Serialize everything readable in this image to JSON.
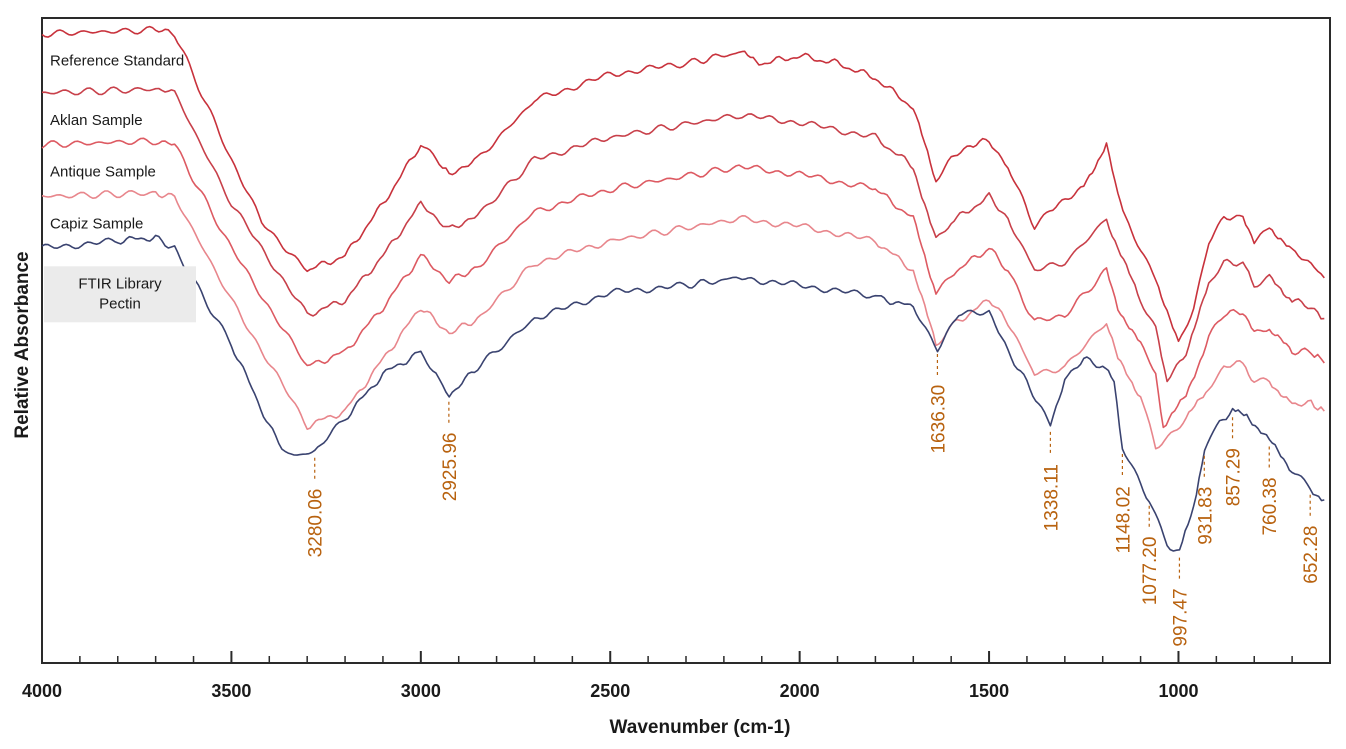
{
  "chart_data": {
    "type": "line",
    "xlabel": "Wavenumber (cm-1)",
    "ylabel": "Relative Absorbance",
    "xlim": [
      4000,
      600
    ],
    "x_ticks": [
      "4000",
      "3500",
      "3000",
      "2500",
      "2000",
      "1500",
      "1000"
    ],
    "y_scale": "relative (series stacked vertically, unitless)",
    "grid": false,
    "legend": "labels placed at left beside each trace",
    "series": [
      {
        "name": "Reference Standard",
        "color": "#c8323c",
        "values": [
          [
            4000,
            0.96
          ],
          [
            3700,
            0.97
          ],
          [
            3650,
            0.96
          ],
          [
            3500,
            0.62
          ],
          [
            3420,
            0.45
          ],
          [
            3300,
            0.32
          ],
          [
            3200,
            0.36
          ],
          [
            3100,
            0.5
          ],
          [
            3000,
            0.66
          ],
          [
            2960,
            0.62
          ],
          [
            2925,
            0.58
          ],
          [
            2850,
            0.62
          ],
          [
            2700,
            0.78
          ],
          [
            2500,
            0.85
          ],
          [
            2300,
            0.88
          ],
          [
            2160,
            0.91
          ],
          [
            2100,
            0.88
          ],
          [
            2000,
            0.9
          ],
          [
            1900,
            0.88
          ],
          [
            1800,
            0.84
          ],
          [
            1700,
            0.76
          ],
          [
            1640,
            0.56
          ],
          [
            1600,
            0.62
          ],
          [
            1550,
            0.66
          ],
          [
            1500,
            0.67
          ],
          [
            1450,
            0.6
          ],
          [
            1380,
            0.44
          ],
          [
            1340,
            0.48
          ],
          [
            1250,
            0.55
          ],
          [
            1190,
            0.66
          ],
          [
            1160,
            0.52
          ],
          [
            1140,
            0.46
          ],
          [
            1100,
            0.38
          ],
          [
            1060,
            0.3
          ],
          [
            1000,
            0.12
          ],
          [
            960,
            0.22
          ],
          [
            920,
            0.4
          ],
          [
            880,
            0.46
          ],
          [
            830,
            0.47
          ],
          [
            800,
            0.4
          ],
          [
            760,
            0.44
          ],
          [
            700,
            0.37
          ],
          [
            650,
            0.34
          ],
          [
            615,
            0.3
          ]
        ]
      },
      {
        "name": "Aklan Sample",
        "color": "#c8404a",
        "values": [
          [
            4000,
            0.8
          ],
          [
            3700,
            0.81
          ],
          [
            3650,
            0.8
          ],
          [
            3500,
            0.5
          ],
          [
            3300,
            0.2
          ],
          [
            3200,
            0.24
          ],
          [
            3100,
            0.36
          ],
          [
            3000,
            0.5
          ],
          [
            2925,
            0.43
          ],
          [
            2850,
            0.47
          ],
          [
            2700,
            0.62
          ],
          [
            2500,
            0.68
          ],
          [
            2160,
            0.74
          ],
          [
            2000,
            0.72
          ],
          [
            1800,
            0.68
          ],
          [
            1700,
            0.6
          ],
          [
            1640,
            0.4
          ],
          [
            1600,
            0.45
          ],
          [
            1500,
            0.52
          ],
          [
            1450,
            0.46
          ],
          [
            1380,
            0.32
          ],
          [
            1300,
            0.34
          ],
          [
            1190,
            0.46
          ],
          [
            1160,
            0.38
          ],
          [
            1100,
            0.24
          ],
          [
            1060,
            0.16
          ],
          [
            1030,
            0.02
          ],
          [
            980,
            0.1
          ],
          [
            920,
            0.28
          ],
          [
            880,
            0.34
          ],
          [
            830,
            0.34
          ],
          [
            800,
            0.28
          ],
          [
            760,
            0.3
          ],
          [
            700,
            0.24
          ],
          [
            650,
            0.22
          ],
          [
            615,
            0.19
          ]
        ]
      },
      {
        "name": "Antique Sample",
        "color": "#dd5a62",
        "values": [
          [
            4000,
            0.66
          ],
          [
            3700,
            0.67
          ],
          [
            3650,
            0.66
          ],
          [
            3500,
            0.38
          ],
          [
            3300,
            0.06
          ],
          [
            3200,
            0.1
          ],
          [
            3100,
            0.22
          ],
          [
            3000,
            0.36
          ],
          [
            2925,
            0.29
          ],
          [
            2850,
            0.33
          ],
          [
            2700,
            0.48
          ],
          [
            2500,
            0.54
          ],
          [
            2160,
            0.6
          ],
          [
            2000,
            0.58
          ],
          [
            1800,
            0.54
          ],
          [
            1700,
            0.46
          ],
          [
            1640,
            0.26
          ],
          [
            1600,
            0.31
          ],
          [
            1500,
            0.38
          ],
          [
            1450,
            0.32
          ],
          [
            1380,
            0.18
          ],
          [
            1300,
            0.2
          ],
          [
            1190,
            0.32
          ],
          [
            1160,
            0.22
          ],
          [
            1100,
            0.12
          ],
          [
            1060,
            0.04
          ],
          [
            1040,
            -0.1
          ],
          [
            980,
            -0.02
          ],
          [
            920,
            0.14
          ],
          [
            880,
            0.2
          ],
          [
            830,
            0.21
          ],
          [
            800,
            0.15
          ],
          [
            760,
            0.16
          ],
          [
            700,
            0.1
          ],
          [
            650,
            0.1
          ],
          [
            615,
            0.07
          ]
        ]
      },
      {
        "name": "Capiz Sample",
        "color": "#e8868c",
        "values": [
          [
            4000,
            0.52
          ],
          [
            3700,
            0.53
          ],
          [
            3650,
            0.52
          ],
          [
            3500,
            0.24
          ],
          [
            3300,
            -0.1
          ],
          [
            3200,
            -0.06
          ],
          [
            3100,
            0.08
          ],
          [
            3000,
            0.22
          ],
          [
            2925,
            0.15
          ],
          [
            2850,
            0.19
          ],
          [
            2700,
            0.34
          ],
          [
            2500,
            0.4
          ],
          [
            2160,
            0.46
          ],
          [
            2000,
            0.44
          ],
          [
            1800,
            0.4
          ],
          [
            1700,
            0.32
          ],
          [
            1640,
            0.12
          ],
          [
            1600,
            0.17
          ],
          [
            1500,
            0.24
          ],
          [
            1450,
            0.18
          ],
          [
            1380,
            0.04
          ],
          [
            1300,
            0.06
          ],
          [
            1190,
            0.18
          ],
          [
            1160,
            0.08
          ],
          [
            1100,
            -0.02
          ],
          [
            1060,
            -0.16
          ],
          [
            980,
            -0.08
          ],
          [
            920,
            0.0
          ],
          [
            880,
            0.06
          ],
          [
            830,
            0.07
          ],
          [
            800,
            0.02
          ],
          [
            760,
            0.02
          ],
          [
            700,
            -0.04
          ],
          [
            650,
            -0.04
          ],
          [
            615,
            -0.06
          ]
        ]
      },
      {
        "name": "FTIR Library Pectin",
        "color": "#3a4370",
        "values": [
          [
            4000,
            0.38
          ],
          [
            3800,
            0.4
          ],
          [
            3700,
            0.41
          ],
          [
            3650,
            0.38
          ],
          [
            3500,
            0.12
          ],
          [
            3400,
            -0.1
          ],
          [
            3350,
            -0.18
          ],
          [
            3280,
            -0.17
          ],
          [
            3200,
            -0.08
          ],
          [
            3100,
            0.04
          ],
          [
            3000,
            0.1
          ],
          [
            2960,
            0.04
          ],
          [
            2925,
            -0.02
          ],
          [
            2850,
            0.06
          ],
          [
            2700,
            0.19
          ],
          [
            2500,
            0.26
          ],
          [
            2300,
            0.28
          ],
          [
            2160,
            0.3
          ],
          [
            2000,
            0.28
          ],
          [
            1800,
            0.25
          ],
          [
            1700,
            0.22
          ],
          [
            1636,
            0.11
          ],
          [
            1580,
            0.2
          ],
          [
            1500,
            0.21
          ],
          [
            1450,
            0.1
          ],
          [
            1400,
            0.02
          ],
          [
            1338,
            -0.1
          ],
          [
            1300,
            0.03
          ],
          [
            1250,
            0.08
          ],
          [
            1200,
            0.06
          ],
          [
            1170,
            0.02
          ],
          [
            1148,
            -0.16
          ],
          [
            1100,
            -0.26
          ],
          [
            1077,
            -0.3
          ],
          [
            1030,
            -0.42
          ],
          [
            997,
            -0.44
          ],
          [
            960,
            -0.32
          ],
          [
            931,
            -0.16
          ],
          [
            900,
            -0.1
          ],
          [
            857,
            -0.06
          ],
          [
            820,
            -0.07
          ],
          [
            760,
            -0.14
          ],
          [
            700,
            -0.22
          ],
          [
            652,
            -0.27
          ],
          [
            615,
            -0.3
          ]
        ]
      }
    ],
    "peak_labels": [
      {
        "x": 3280.06,
        "text": "3280.06"
      },
      {
        "x": 2925.96,
        "text": "2925.96"
      },
      {
        "x": 1636.3,
        "text": "1636.30"
      },
      {
        "x": 1338.11,
        "text": "1338.11"
      },
      {
        "x": 1148.02,
        "text": "1148.02"
      },
      {
        "x": 1077.2,
        "text": "1077.20"
      },
      {
        "x": 997.47,
        "text": "997.47"
      },
      {
        "x": 931.83,
        "text": "931.83"
      },
      {
        "x": 857.29,
        "text": "857.29"
      },
      {
        "x": 760.38,
        "text": "760.38"
      },
      {
        "x": 652.28,
        "text": "652.28"
      }
    ]
  }
}
